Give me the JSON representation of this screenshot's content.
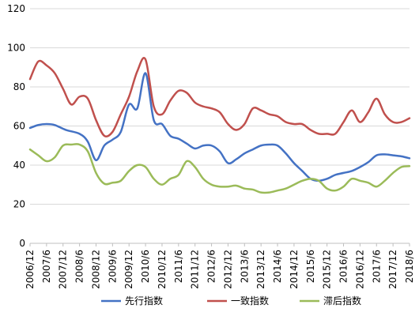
{
  "chart_data": {
    "type": "line",
    "title": "",
    "xlabel": "",
    "ylabel": "",
    "ylim": [
      0,
      120
    ],
    "yticks": [
      0,
      20,
      40,
      60,
      80,
      100,
      120
    ],
    "grid": true,
    "legend_position": "bottom",
    "x_start": "2006/12",
    "x_end": "2018/6",
    "xtick_labels": [
      "2006/12",
      "2007/6",
      "2007/12",
      "2008/6",
      "2008/12",
      "2009/6",
      "2009/12",
      "2010/6",
      "2010/12",
      "2011/6",
      "2011/12",
      "2012/6",
      "2012/12",
      "2013/6",
      "2013/12",
      "2014/6",
      "2014/12",
      "2015/6",
      "2015/12",
      "2016/6",
      "2016/12",
      "2017/6",
      "2017/12",
      "2018/6"
    ],
    "series": [
      {
        "name": "先行指数",
        "color": "#4472c4",
        "points": [
          [
            "2006/12",
            59
          ],
          [
            "2007/3",
            60.5
          ],
          [
            "2007/6",
            61
          ],
          [
            "2007/9",
            60.5
          ],
          [
            "2008/1",
            58
          ],
          [
            "2008/6",
            56
          ],
          [
            "2008/9",
            52
          ],
          [
            "2008/12",
            42.5
          ],
          [
            "2009/3",
            50
          ],
          [
            "2009/6",
            53
          ],
          [
            "2009/9",
            57
          ],
          [
            "2009/12",
            71
          ],
          [
            "2010/3",
            69
          ],
          [
            "2010/6",
            87
          ],
          [
            "2010/9",
            63
          ],
          [
            "2010/12",
            61
          ],
          [
            "2011/3",
            55
          ],
          [
            "2011/6",
            53.5
          ],
          [
            "2011/9",
            51
          ],
          [
            "2011/12",
            48.5
          ],
          [
            "2012/3",
            50
          ],
          [
            "2012/6",
            50
          ],
          [
            "2012/9",
            47
          ],
          [
            "2012/12",
            41
          ],
          [
            "2013/3",
            43
          ],
          [
            "2013/6",
            46
          ],
          [
            "2013/9",
            48
          ],
          [
            "2013/12",
            50
          ],
          [
            "2014/3",
            50.5
          ],
          [
            "2014/6",
            50
          ],
          [
            "2014/9",
            46
          ],
          [
            "2014/12",
            41
          ],
          [
            "2015/3",
            37
          ],
          [
            "2015/6",
            33
          ],
          [
            "2015/9",
            32
          ],
          [
            "2015/12",
            33
          ],
          [
            "2016/3",
            35
          ],
          [
            "2016/6",
            36
          ],
          [
            "2016/9",
            37
          ],
          [
            "2016/12",
            39
          ],
          [
            "2017/3",
            41.5
          ],
          [
            "2017/6",
            45
          ],
          [
            "2017/9",
            45.5
          ],
          [
            "2017/12",
            45
          ],
          [
            "2018/3",
            44.5
          ],
          [
            "2018/6",
            43.5
          ]
        ]
      },
      {
        "name": "一致指数",
        "color": "#c0504d",
        "points": [
          [
            "2006/12",
            84
          ],
          [
            "2007/3",
            93
          ],
          [
            "2007/6",
            91
          ],
          [
            "2007/9",
            87
          ],
          [
            "2007/12",
            79
          ],
          [
            "2008/3",
            71
          ],
          [
            "2008/6",
            75
          ],
          [
            "2008/9",
            74
          ],
          [
            "2008/12",
            63
          ],
          [
            "2009/3",
            55
          ],
          [
            "2009/6",
            57
          ],
          [
            "2009/9",
            66
          ],
          [
            "2009/12",
            75
          ],
          [
            "2010/3",
            88
          ],
          [
            "2010/6",
            94
          ],
          [
            "2010/9",
            70
          ],
          [
            "2010/12",
            66
          ],
          [
            "2011/3",
            73
          ],
          [
            "2011/6",
            78
          ],
          [
            "2011/9",
            77
          ],
          [
            "2011/12",
            72
          ],
          [
            "2012/3",
            70
          ],
          [
            "2012/6",
            69
          ],
          [
            "2012/9",
            67
          ],
          [
            "2012/12",
            61
          ],
          [
            "2013/3",
            58
          ],
          [
            "2013/6",
            61
          ],
          [
            "2013/9",
            69
          ],
          [
            "2013/12",
            68
          ],
          [
            "2014/3",
            66
          ],
          [
            "2014/6",
            65
          ],
          [
            "2014/9",
            62
          ],
          [
            "2014/12",
            61
          ],
          [
            "2015/3",
            61
          ],
          [
            "2015/6",
            58
          ],
          [
            "2015/9",
            56
          ],
          [
            "2015/12",
            56
          ],
          [
            "2016/3",
            56
          ],
          [
            "2016/6",
            62
          ],
          [
            "2016/9",
            68
          ],
          [
            "2016/12",
            62
          ],
          [
            "2017/3",
            67
          ],
          [
            "2017/6",
            74
          ],
          [
            "2017/9",
            66
          ],
          [
            "2017/12",
            62
          ],
          [
            "2018/3",
            62
          ],
          [
            "2018/6",
            64
          ]
        ]
      },
      {
        "name": "滞后指数",
        "color": "#9bbb59",
        "points": [
          [
            "2006/12",
            48
          ],
          [
            "2007/3",
            45
          ],
          [
            "2007/6",
            42
          ],
          [
            "2007/9",
            44
          ],
          [
            "2007/12",
            50
          ],
          [
            "2008/3",
            50.5
          ],
          [
            "2008/6",
            50.5
          ],
          [
            "2008/9",
            47
          ],
          [
            "2008/12",
            36
          ],
          [
            "2009/3",
            30.5
          ],
          [
            "2009/6",
            31
          ],
          [
            "2009/9",
            32
          ],
          [
            "2009/12",
            37
          ],
          [
            "2010/3",
            40
          ],
          [
            "2010/6",
            39
          ],
          [
            "2010/9",
            33
          ],
          [
            "2010/12",
            30
          ],
          [
            "2011/3",
            33
          ],
          [
            "2011/6",
            35
          ],
          [
            "2011/9",
            42
          ],
          [
            "2011/12",
            39
          ],
          [
            "2012/3",
            33
          ],
          [
            "2012/6",
            30
          ],
          [
            "2012/9",
            29
          ],
          [
            "2012/12",
            29
          ],
          [
            "2013/3",
            29.5
          ],
          [
            "2013/6",
            28
          ],
          [
            "2013/9",
            27.5
          ],
          [
            "2013/12",
            26
          ],
          [
            "2014/3",
            26
          ],
          [
            "2014/6",
            27
          ],
          [
            "2014/9",
            28
          ],
          [
            "2014/12",
            30
          ],
          [
            "2015/3",
            32
          ],
          [
            "2015/6",
            33
          ],
          [
            "2015/9",
            32
          ],
          [
            "2015/12",
            28
          ],
          [
            "2016/3",
            27
          ],
          [
            "2016/6",
            29
          ],
          [
            "2016/9",
            33
          ],
          [
            "2016/12",
            32
          ],
          [
            "2017/3",
            31
          ],
          [
            "2017/6",
            29
          ],
          [
            "2017/9",
            32
          ],
          [
            "2017/12",
            36
          ],
          [
            "2018/3",
            39
          ],
          [
            "2018/6",
            39.5
          ]
        ]
      }
    ]
  }
}
